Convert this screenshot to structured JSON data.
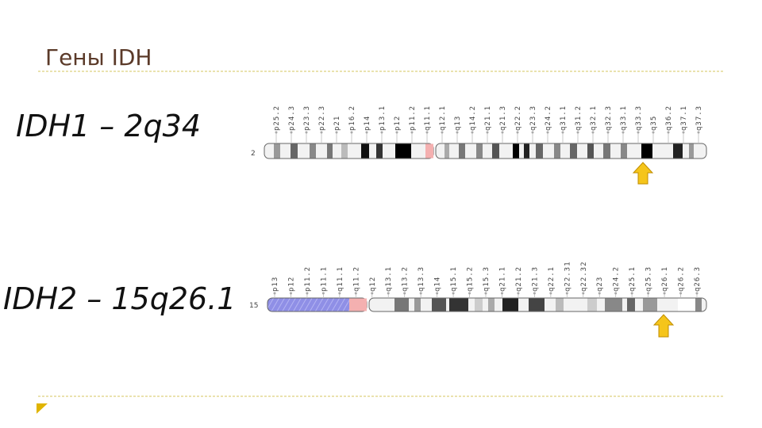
{
  "header": {
    "title": "Гены IDH"
  },
  "genes": [
    {
      "label": "IDH1 – 2q34",
      "chromosome": "2",
      "bands": [
        "p25.2",
        "p24.3",
        "p23.3",
        "p22.3",
        "p21",
        "p16.2",
        "p14",
        "p13.1",
        "p12",
        "p11.2",
        "q11.1",
        "q12.1",
        "q13",
        "q14.2",
        "q21.1",
        "q21.3",
        "q22.2",
        "q23.3",
        "q24.2",
        "q31.1",
        "q31.2",
        "q32.1",
        "q32.3",
        "q33.1",
        "q33.3",
        "q35",
        "q36.2",
        "q37.1",
        "q37.3"
      ]
    },
    {
      "label": "IDH2 – 15q26.1",
      "chromosome": "15",
      "bands": [
        "p13",
        "p12",
        "p11.2",
        "p11.1",
        "q11.1",
        "q11.2",
        "q12",
        "q13.1",
        "q13.2",
        "q13.3",
        "q14",
        "q15.1",
        "q15.2",
        "q15.3",
        "q21.1",
        "q21.2",
        "q21.3",
        "q22.1",
        "q22.31",
        "q22.32",
        "q23",
        "q24.2",
        "q25.1",
        "q25.3",
        "q26.1",
        "q26.2",
        "q26.3"
      ]
    }
  ]
}
